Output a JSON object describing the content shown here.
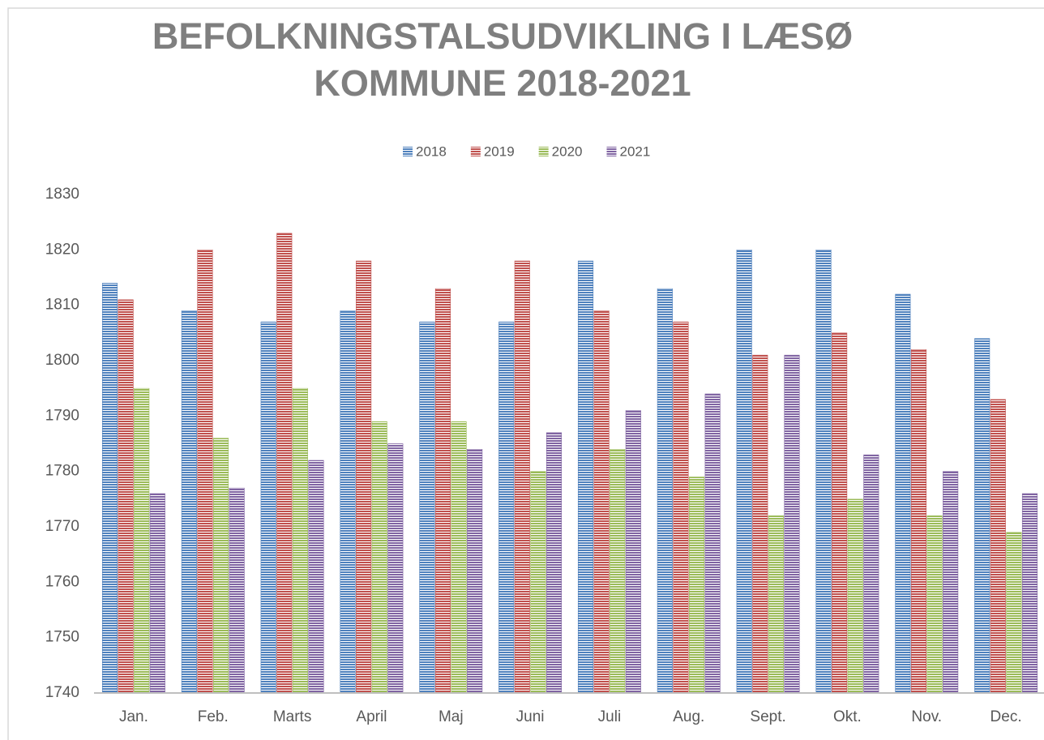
{
  "chart_data": {
    "type": "bar",
    "title": "BEFOLKNINGSTALSUDVIKLING I LÆSØ KOMMUNE 2018-2021",
    "categories": [
      "Jan.",
      "Feb.",
      "Marts",
      "April",
      "Maj",
      "Juni",
      "Juli",
      "Aug.",
      "Sept.",
      "Okt.",
      "Nov.",
      "Dec."
    ],
    "series": [
      {
        "name": "2018",
        "color": "#4f81bd",
        "values": [
          1814,
          1809,
          1807,
          1809,
          1807,
          1807,
          1818,
          1813,
          1820,
          1820,
          1812,
          1804
        ]
      },
      {
        "name": "2019",
        "color": "#c0504d",
        "values": [
          1811,
          1820,
          1823,
          1818,
          1813,
          1818,
          1809,
          1807,
          1801,
          1805,
          1802,
          1793
        ]
      },
      {
        "name": "2020",
        "color": "#9bbb59",
        "values": [
          1795,
          1786,
          1795,
          1789,
          1789,
          1780,
          1784,
          1779,
          1772,
          1775,
          1772,
          1769
        ]
      },
      {
        "name": "2021",
        "color": "#8064a2",
        "values": [
          1776,
          1777,
          1782,
          1785,
          1784,
          1787,
          1791,
          1794,
          1801,
          1783,
          1780,
          1776
        ]
      }
    ],
    "ylim": [
      1740,
      1830
    ],
    "yticks": [
      1740,
      1750,
      1760,
      1770,
      1780,
      1790,
      1800,
      1810,
      1820,
      1830
    ],
    "grid": false,
    "legend": "top"
  }
}
